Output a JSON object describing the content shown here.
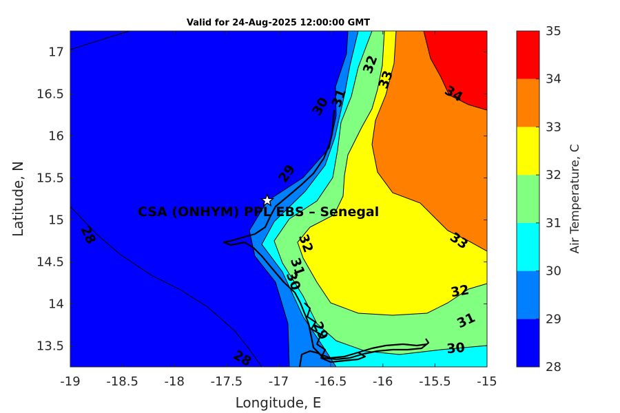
{
  "title": "Valid for 24-Aug-2025 12:00:00 GMT",
  "site_label": "CSA (ONHYM) PPL EBS  – Senegal",
  "marker": {
    "icon": "star-icon",
    "lon": -17.11,
    "lat": 15.23,
    "color": "#ffffff"
  },
  "chart_data": {
    "type": "contour-map",
    "xlabel": "Longitude, E",
    "ylabel": "Latitude, N",
    "xlim": [
      -19,
      -15
    ],
    "ylim": [
      13.25,
      17.25
    ],
    "xticks": [
      -19,
      -18.5,
      -18,
      -17.5,
      -17,
      -16.5,
      -16,
      -15.5,
      -15
    ],
    "xtick_labels": [
      "-19",
      "-18.5",
      "-18",
      "-17.5",
      "-17",
      "-16.5",
      "-16",
      "-15.5",
      "-15"
    ],
    "yticks": [
      13.5,
      14,
      14.5,
      15,
      15.5,
      16,
      16.5,
      17
    ],
    "ytick_labels": [
      "13.5",
      "14",
      "14.5",
      "15",
      "15.5",
      "16",
      "16.5",
      "17"
    ],
    "colorbar": {
      "label": "Air Temperature, C",
      "levels": [
        28,
        29,
        30,
        31,
        32,
        33,
        34,
        35
      ],
      "level_labels": [
        "28",
        "29",
        "30",
        "31",
        "32",
        "33",
        "34",
        "35"
      ],
      "colors": [
        "#0000ff",
        "#0080ff",
        "#00ffff",
        "#80ff80",
        "#ffff00",
        "#ff8000",
        "#ff0000",
        "#800000"
      ]
    },
    "contour_labels": [
      {
        "text": "28",
        "lon": -18.83,
        "lat": 14.82,
        "rotate": 65
      },
      {
        "text": "28",
        "lon": -17.35,
        "lat": 13.35,
        "rotate": 30
      },
      {
        "text": "29",
        "lon": -16.92,
        "lat": 15.55,
        "rotate": -55
      },
      {
        "text": "30",
        "lon": -16.6,
        "lat": 16.35,
        "rotate": -60
      },
      {
        "text": "31",
        "lon": -16.42,
        "lat": 16.45,
        "rotate": -70
      },
      {
        "text": "32",
        "lon": -16.12,
        "lat": 16.85,
        "rotate": -70
      },
      {
        "text": "33",
        "lon": -15.97,
        "lat": 16.67,
        "rotate": -70
      },
      {
        "text": "34",
        "lon": -15.32,
        "lat": 16.5,
        "rotate": 30
      },
      {
        "text": "33",
        "lon": -15.27,
        "lat": 14.75,
        "rotate": 35
      },
      {
        "text": "32",
        "lon": -16.74,
        "lat": 14.72,
        "rotate": 70
      },
      {
        "text": "31",
        "lon": -16.82,
        "lat": 14.44,
        "rotate": 70
      },
      {
        "text": "30",
        "lon": -16.86,
        "lat": 14.27,
        "rotate": 70
      },
      {
        "text": "32",
        "lon": -15.26,
        "lat": 14.15,
        "rotate": -10
      },
      {
        "text": "31",
        "lon": -15.2,
        "lat": 13.8,
        "rotate": -25
      },
      {
        "text": "30",
        "lon": -15.3,
        "lat": 13.47,
        "rotate": -5
      },
      {
        "text": "29",
        "lon": -16.6,
        "lat": 13.68,
        "rotate": 65
      }
    ]
  }
}
